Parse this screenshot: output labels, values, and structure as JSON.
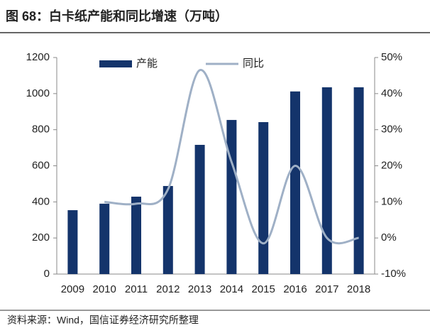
{
  "chart_data": {
    "type": "bar",
    "title": "图 68：白卡纸产能和同比增速（万吨）",
    "source": "资料来源：Wind，国信证券经济研究所整理",
    "categories": [
      "2009",
      "2010",
      "2011",
      "2012",
      "2013",
      "2014",
      "2015",
      "2016",
      "2017",
      "2018"
    ],
    "series": [
      {
        "name": "产能",
        "type": "bar",
        "color": "#14346b",
        "values": [
          354,
          390,
          429,
          488,
          716,
          854,
          842,
          1012,
          1035,
          1035
        ]
      },
      {
        "name": "同比",
        "type": "line",
        "axis": "y2",
        "smooth": true,
        "color": "#9fb0c6",
        "values": [
          null,
          10,
          9.5,
          13.5,
          46.5,
          21,
          -1.5,
          20,
          0,
          0
        ]
      }
    ],
    "ylim": [
      0,
      1200
    ],
    "yticks": [
      0,
      200,
      400,
      600,
      800,
      1000,
      1200
    ],
    "y2lim": [
      -10,
      50
    ],
    "y2ticks": [
      {
        "value": -10,
        "label": "-10%"
      },
      {
        "value": 0,
        "label": "0%"
      },
      {
        "value": 10,
        "label": "10%"
      },
      {
        "value": 20,
        "label": "20%"
      },
      {
        "value": 30,
        "label": "30%"
      },
      {
        "value": 40,
        "label": "40%"
      },
      {
        "value": 50,
        "label": "50%"
      }
    ],
    "legend": "top",
    "grid": false
  }
}
